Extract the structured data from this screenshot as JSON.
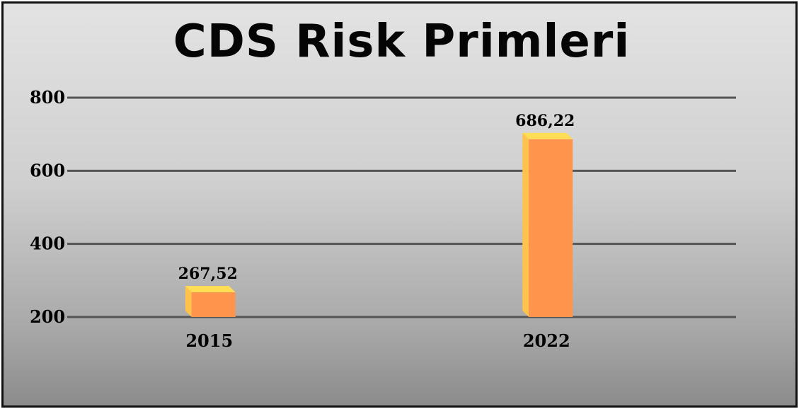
{
  "chart_data": {
    "type": "bar",
    "title": "CDS Risk Primleri",
    "categories": [
      "2015",
      "2022"
    ],
    "series": [
      {
        "values": [
          267.52,
          686.22
        ]
      }
    ],
    "data_labels": [
      "267,52",
      "686,22"
    ],
    "y_ticks": [
      200,
      400,
      600,
      800
    ],
    "ylim": [
      200,
      800
    ],
    "xlabel": "",
    "ylabel": "",
    "grid": true,
    "legend": "none",
    "colors": {
      "bar_front": "#ff944d",
      "bar_top": "#ffdd55",
      "bar_side": "#ffc24d",
      "gridline": "#555555"
    }
  }
}
